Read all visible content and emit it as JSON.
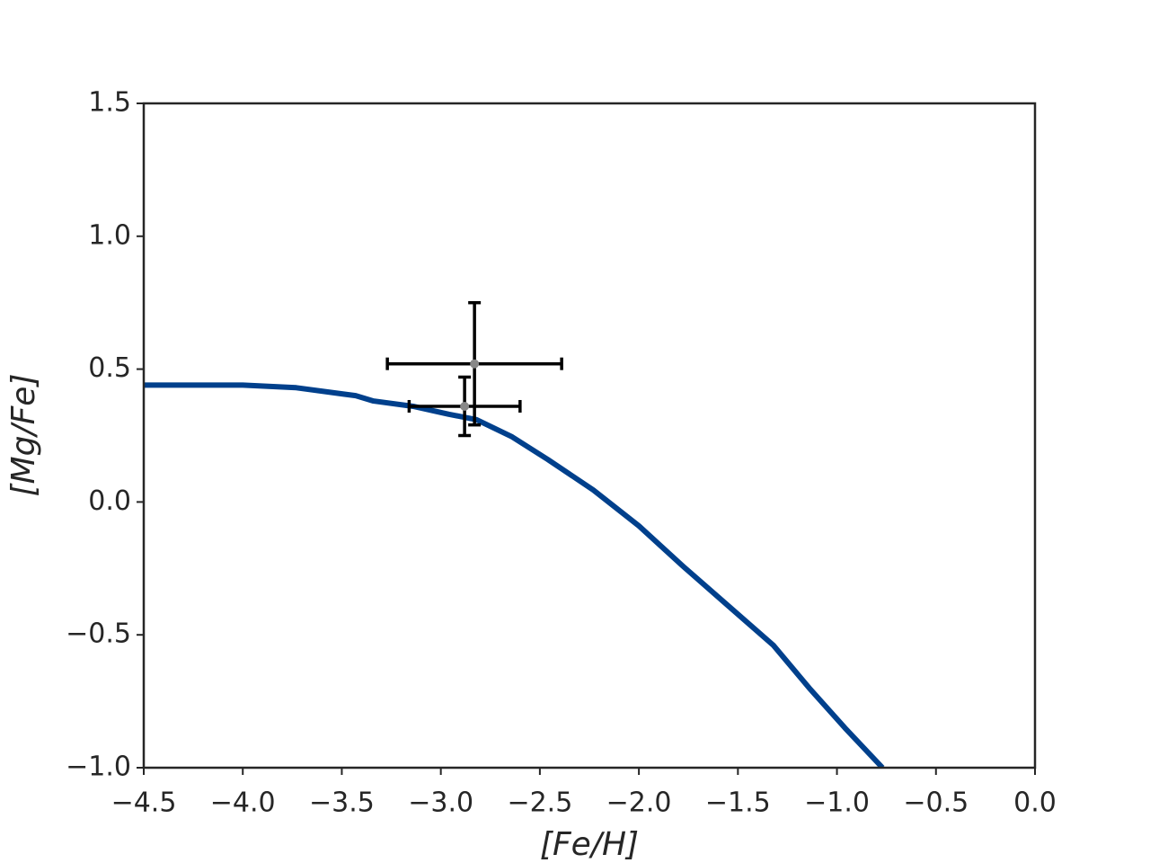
{
  "chart_data": {
    "type": "line",
    "x_label": "[Fe/H]",
    "y_label": "[Mg/Fe]",
    "x": [
      -4.5,
      -4.0,
      -3.73,
      -3.43,
      -3.34,
      -3.14,
      -2.96,
      -2.82,
      -2.64,
      -2.46,
      -2.23,
      -2.0,
      -1.78,
      -1.55,
      -1.32,
      -1.14,
      -0.96,
      -0.77
    ],
    "series": [
      {
        "color": "#00408c",
        "values": [
          0.44,
          0.44,
          0.43,
          0.4,
          0.38,
          0.36,
          0.33,
          0.31,
          0.245,
          0.16,
          0.045,
          -0.09,
          -0.24,
          -0.39,
          -0.54,
          -0.7,
          -0.85,
          -1.0
        ]
      }
    ],
    "points": {
      "x": [
        -2.83,
        -2.88
      ],
      "y": [
        0.52,
        0.36
      ],
      "xerr": [
        0.44,
        0.28
      ],
      "yerr": [
        0.23,
        0.11
      ],
      "color": "#888888",
      "error_color": "#000000"
    },
    "xlim": [
      -4.5,
      0.0
    ],
    "ylim": [
      -1.0,
      1.5
    ],
    "xticks": [
      {
        "value": -4.5,
        "label": "−4.5"
      },
      {
        "value": -4.0,
        "label": "−4.0"
      },
      {
        "value": -3.5,
        "label": "−3.5"
      },
      {
        "value": -3.0,
        "label": "−3.0"
      },
      {
        "value": -2.5,
        "label": "−2.5"
      },
      {
        "value": -2.0,
        "label": "−2.0"
      },
      {
        "value": -1.5,
        "label": "−1.5"
      },
      {
        "value": -1.0,
        "label": "−1.0"
      },
      {
        "value": -0.5,
        "label": "−0.5"
      },
      {
        "value": 0.0,
        "label": "0.0"
      }
    ],
    "yticks": [
      {
        "value": -1.0,
        "label": "−1.0"
      },
      {
        "value": -0.5,
        "label": "−0.5"
      },
      {
        "value": 0.0,
        "label": "0.0"
      },
      0.5,
      {
        "value": 1.0,
        "label": "1.0"
      },
      1.5
    ]
  }
}
